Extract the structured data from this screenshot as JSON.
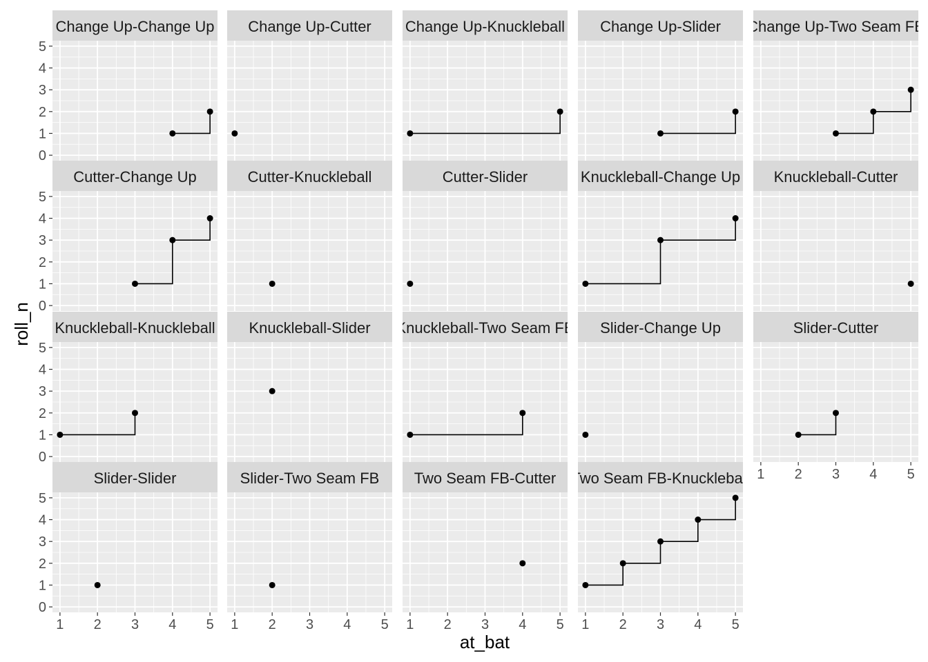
{
  "chart_data": {
    "type": "line",
    "subtype": "faceted step plot with points",
    "xlabel": "at_bat",
    "ylabel": "roll_n",
    "xlim": [
      1,
      5
    ],
    "ylim": [
      0,
      5
    ],
    "x_ticks": [
      1,
      2,
      3,
      4,
      5
    ],
    "y_ticks": [
      0,
      1,
      2,
      3,
      4,
      5
    ],
    "grid": true,
    "panel_background": "#ebebeb",
    "strip_background": "#d9d9d9",
    "point_color": "#000000",
    "facet_layout": {
      "ncol": 5,
      "nrow": 4
    },
    "facets": [
      {
        "label": "Change Up-Change Up",
        "x": [
          4,
          5
        ],
        "y": [
          1,
          2
        ]
      },
      {
        "label": "Change Up-Cutter",
        "x": [
          1
        ],
        "y": [
          1
        ]
      },
      {
        "label": "Change Up-Knuckleball",
        "x": [
          1,
          5
        ],
        "y": [
          1,
          2
        ]
      },
      {
        "label": "Change Up-Slider",
        "x": [
          3,
          5
        ],
        "y": [
          1,
          2
        ]
      },
      {
        "label": "Change Up-Two Seam FB",
        "x": [
          3,
          4,
          5
        ],
        "y": [
          1,
          2,
          3
        ]
      },
      {
        "label": "Cutter-Change Up",
        "x": [
          3,
          4,
          5
        ],
        "y": [
          1,
          3,
          4
        ]
      },
      {
        "label": "Cutter-Knuckleball",
        "x": [
          2
        ],
        "y": [
          1
        ]
      },
      {
        "label": "Cutter-Slider",
        "x": [
          1
        ],
        "y": [
          1
        ]
      },
      {
        "label": "Knuckleball-Change Up",
        "x": [
          1,
          3,
          5
        ],
        "y": [
          1,
          3,
          4
        ]
      },
      {
        "label": "Knuckleball-Cutter",
        "x": [
          5
        ],
        "y": [
          1
        ]
      },
      {
        "label": "Knuckleball-Knuckleball",
        "x": [
          1,
          3
        ],
        "y": [
          1,
          2
        ]
      },
      {
        "label": "Knuckleball-Slider",
        "x": [
          2
        ],
        "y": [
          3
        ]
      },
      {
        "label": "Knuckleball-Two Seam FB",
        "x": [
          1,
          4
        ],
        "y": [
          1,
          2
        ]
      },
      {
        "label": "Slider-Change Up",
        "x": [
          1
        ],
        "y": [
          1
        ]
      },
      {
        "label": "Slider-Cutter",
        "x": [
          2,
          3
        ],
        "y": [
          1,
          2
        ]
      },
      {
        "label": "Slider-Slider",
        "x": [
          2
        ],
        "y": [
          1
        ]
      },
      {
        "label": "Slider-Two Seam FB",
        "x": [
          2
        ],
        "y": [
          1
        ]
      },
      {
        "label": "Two Seam FB-Cutter",
        "x": [
          4
        ],
        "y": [
          2
        ]
      },
      {
        "label": "Two Seam FB-Knuckleball",
        "x": [
          1,
          2,
          3,
          4,
          5
        ],
        "y": [
          1,
          2,
          3,
          4,
          5
        ]
      }
    ]
  }
}
